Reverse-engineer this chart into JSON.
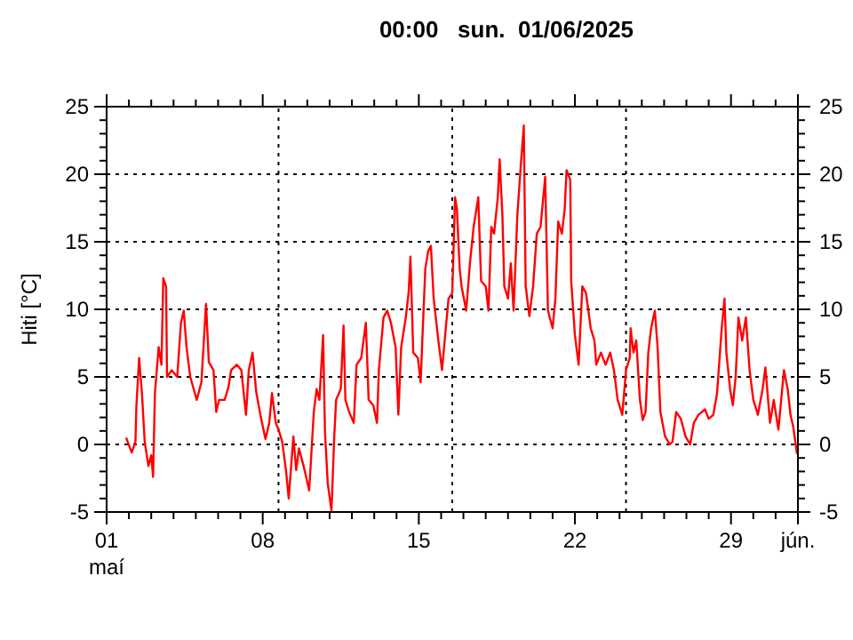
{
  "chart_data": {
    "type": "line",
    "title": "00:00   sun.  01/06/2025",
    "ylabel": "Hiti [°C]",
    "xlim": [
      "2025-05-01",
      "2025-06-01"
    ],
    "xticks": [
      {
        "value": "2025-05-01",
        "label": "01\nmaí"
      },
      {
        "value": "2025-05-02",
        "label": null
      },
      {
        "value": "2025-05-03",
        "label": null
      },
      {
        "value": "2025-05-04",
        "label": null
      },
      {
        "value": "2025-05-05",
        "label": null
      },
      {
        "value": "2025-05-06",
        "label": null
      },
      {
        "value": "2025-05-07",
        "label": null
      },
      {
        "value": "2025-05-08",
        "label": "08"
      },
      {
        "value": "2025-05-09",
        "label": null
      },
      {
        "value": "2025-05-10",
        "label": null
      },
      {
        "value": "2025-05-11",
        "label": null
      },
      {
        "value": "2025-05-12",
        "label": null
      },
      {
        "value": "2025-05-13",
        "label": null
      },
      {
        "value": "2025-05-14",
        "label": null
      },
      {
        "value": "2025-05-15",
        "label": "15"
      },
      {
        "value": "2025-05-16",
        "label": null
      },
      {
        "value": "2025-05-17",
        "label": null
      },
      {
        "value": "2025-05-18",
        "label": null
      },
      {
        "value": "2025-05-19",
        "label": null
      },
      {
        "value": "2025-05-20",
        "label": null
      },
      {
        "value": "2025-05-21",
        "label": null
      },
      {
        "value": "2025-05-22",
        "label": "22"
      },
      {
        "value": "2025-05-23",
        "label": null
      },
      {
        "value": "2025-05-24",
        "label": null
      },
      {
        "value": "2025-05-25",
        "label": null
      },
      {
        "value": "2025-05-26",
        "label": null
      },
      {
        "value": "2025-05-27",
        "label": null
      },
      {
        "value": "2025-05-28",
        "label": null
      },
      {
        "value": "2025-05-29",
        "label": "29"
      },
      {
        "value": "2025-05-30",
        "label": null
      },
      {
        "value": "2025-05-31",
        "label": null
      },
      {
        "value": "2025-06-01",
        "label": "jún."
      }
    ],
    "ylim": [
      -5,
      25
    ],
    "yticks": [
      -5,
      {
        "value": -4,
        "label": null
      },
      {
        "value": -3,
        "label": null
      },
      {
        "value": -2,
        "label": null
      },
      {
        "value": -1,
        "label": null
      },
      0,
      {
        "value": 1,
        "label": null
      },
      {
        "value": 2,
        "label": null
      },
      {
        "value": 3,
        "label": null
      },
      {
        "value": 4,
        "label": null
      },
      5,
      {
        "value": 6,
        "label": null
      },
      {
        "value": 7,
        "label": null
      },
      {
        "value": 8,
        "label": null
      },
      {
        "value": 9,
        "label": null
      },
      10,
      {
        "value": 11,
        "label": null
      },
      {
        "value": 12,
        "label": null
      },
      {
        "value": 13,
        "label": null
      },
      {
        "value": 14,
        "label": null
      },
      15,
      {
        "value": 16,
        "label": null
      },
      {
        "value": 17,
        "label": null
      },
      {
        "value": 18,
        "label": null
      },
      {
        "value": 19,
        "label": null
      },
      20,
      {
        "value": 21,
        "label": null
      },
      {
        "value": 22,
        "label": null
      },
      {
        "value": 23,
        "label": null
      },
      {
        "value": 24,
        "label": null
      },
      25
    ],
    "y2lim": [
      -5,
      25
    ],
    "y2ticks": [
      -5,
      {
        "value": -4,
        "label": null
      },
      {
        "value": -3,
        "label": null
      },
      {
        "value": -2,
        "label": null
      },
      {
        "value": -1,
        "label": null
      },
      0,
      {
        "value": 1,
        "label": null
      },
      {
        "value": 2,
        "label": null
      },
      {
        "value": 3,
        "label": null
      },
      {
        "value": 4,
        "label": null
      },
      5,
      {
        "value": 6,
        "label": null
      },
      {
        "value": 7,
        "label": null
      },
      {
        "value": 8,
        "label": null
      },
      {
        "value": 9,
        "label": null
      },
      10,
      {
        "value": 11,
        "label": null
      },
      {
        "value": 12,
        "label": null
      },
      {
        "value": 13,
        "label": null
      },
      {
        "value": 14,
        "label": null
      },
      15,
      {
        "value": 16,
        "label": null
      },
      {
        "value": 17,
        "label": null
      },
      {
        "value": 18,
        "label": null
      },
      {
        "value": 19,
        "label": null
      },
      20,
      {
        "value": 21,
        "label": null
      },
      {
        "value": 22,
        "label": null
      },
      {
        "value": 23,
        "label": null
      },
      {
        "value": 24,
        "label": null
      },
      25
    ],
    "grid": "y",
    "marker": "none",
    "line_style": "solid",
    "ref_lines": [
      {
        "axis": "x",
        "value": "2025-05-08T17:00",
        "label": null,
        "color": "#000000",
        "line_style": "dotted"
      },
      {
        "axis": "x",
        "value": "2025-05-16T12:00",
        "label": null,
        "color": "#000000",
        "line_style": "dotted"
      },
      {
        "axis": "x",
        "value": "2025-05-24T07:00",
        "label": null,
        "color": "#000000",
        "line_style": "dotted"
      }
    ],
    "series": [
      {
        "color": "#ff0000",
        "x": [
          "2025-05-01T21:00",
          "2025-05-02T03:00",
          "2025-05-02T07:00",
          "2025-05-02T08:00",
          "2025-05-02T11:00",
          "2025-05-02T14:00",
          "2025-05-02T17:00",
          "2025-05-02T21:00",
          "2025-05-03T00:00",
          "2025-05-03T02:00",
          "2025-05-03T04:00",
          "2025-05-03T08:00",
          "2025-05-03T11:00",
          "2025-05-03T13:00",
          "2025-05-03T16:00",
          "2025-05-03T17:00",
          "2025-05-03T22:00",
          "2025-05-04T04:00",
          "2025-05-04T08:00",
          "2025-05-04T11:00",
          "2025-05-04T14:00",
          "2025-05-04T18:00",
          "2025-05-05T01:00",
          "2025-05-05T06:00",
          "2025-05-05T11:00",
          "2025-05-05T14:00",
          "2025-05-05T19:00",
          "2025-05-05T22:00",
          "2025-05-06T01:00",
          "2025-05-06T07:00",
          "2025-05-06T11:00",
          "2025-05-06T14:00",
          "2025-05-06T20:00",
          "2025-05-07T01:00",
          "2025-05-07T06:00",
          "2025-05-07T09:00",
          "2025-05-07T13:00",
          "2025-05-07T17:00",
          "2025-05-07T22:00",
          "2025-05-08T03:00",
          "2025-05-08T07:00",
          "2025-05-08T10:00",
          "2025-05-08T14:00",
          "2025-05-08T17:00",
          "2025-05-08T21:00",
          "2025-05-09T01:00",
          "2025-05-09T04:00",
          "2025-05-09T09:00",
          "2025-05-09T12:00",
          "2025-05-09T15:00",
          "2025-05-09T20:00",
          "2025-05-10T02:00",
          "2025-05-10T07:00",
          "2025-05-10T10:00",
          "2025-05-10T13:00",
          "2025-05-10T17:00",
          "2025-05-10T19:00",
          "2025-05-10T22:00",
          "2025-05-11T02:00",
          "2025-05-11T05:00",
          "2025-05-11T07:00",
          "2025-05-11T12:00",
          "2025-05-11T15:00",
          "2025-05-11T17:00",
          "2025-05-11T21:00",
          "2025-05-12T02:00",
          "2025-05-12T05:00",
          "2025-05-12T10:00",
          "2025-05-12T15:00",
          "2025-05-12T18:00",
          "2025-05-12T23:00",
          "2025-05-13T03:00",
          "2025-05-13T05:00",
          "2025-05-13T10:00",
          "2025-05-13T14:00",
          "2025-05-13T18:00",
          "2025-05-13T23:00",
          "2025-05-14T02:00",
          "2025-05-14T05:00",
          "2025-05-14T10:00",
          "2025-05-14T13:00",
          "2025-05-14T15:00",
          "2025-05-14T18:00",
          "2025-05-14T23:00",
          "2025-05-15T02:00",
          "2025-05-15T04:00",
          "2025-05-15T07:00",
          "2025-05-15T10:00",
          "2025-05-15T13:00",
          "2025-05-15T16:00",
          "2025-05-15T21:00",
          "2025-05-16T01:00",
          "2025-05-16T05:00",
          "2025-05-16T08:00",
          "2025-05-16T12:00",
          "2025-05-16T15:00",
          "2025-05-16T17:00",
          "2025-05-16T20:00",
          "2025-05-16T22:00",
          "2025-05-17T03:00",
          "2025-05-17T07:00",
          "2025-05-17T11:00",
          "2025-05-17T16:00",
          "2025-05-17T19:00",
          "2025-05-18T00:00",
          "2025-05-18T03:00",
          "2025-05-18T06:00",
          "2025-05-18T09:00",
          "2025-05-18T13:00",
          "2025-05-18T15:00",
          "2025-05-18T18:00",
          "2025-05-18T20:00",
          "2025-05-19T00:00",
          "2025-05-19T03:00",
          "2025-05-19T06:00",
          "2025-05-19T10:00",
          "2025-05-19T14:00",
          "2025-05-19T17:00",
          "2025-05-19T19:00",
          "2025-05-19T23:00",
          "2025-05-20T03:00",
          "2025-05-20T07:00",
          "2025-05-20T11:00",
          "2025-05-20T16:00",
          "2025-05-20T19:00",
          "2025-05-21T00:00",
          "2025-05-21T03:00",
          "2025-05-21T06:00",
          "2025-05-21T10:00",
          "2025-05-21T13:00",
          "2025-05-21T15:00",
          "2025-05-21T19:00",
          "2025-05-21T20:00",
          "2025-05-22T00:00",
          "2025-05-22T04:00",
          "2025-05-22T08:00",
          "2025-05-22T12:00",
          "2025-05-22T17:00",
          "2025-05-22T21:00",
          "2025-05-22T23:00",
          "2025-05-23T04:00",
          "2025-05-23T09:00",
          "2025-05-23T14:00",
          "2025-05-23T18:00",
          "2025-05-23T22:00",
          "2025-05-24T03:00",
          "2025-05-24T07:00",
          "2025-05-24T11:00",
          "2025-05-24T12:00",
          "2025-05-24T15:00",
          "2025-05-24T18:00",
          "2025-05-24T22:00",
          "2025-05-25T01:00",
          "2025-05-25T04:00",
          "2025-05-25T07:00",
          "2025-05-25T10:00",
          "2025-05-25T14:00",
          "2025-05-25T17:00",
          "2025-05-25T20:00",
          "2025-05-26T01:00",
          "2025-05-26T06:00",
          "2025-05-26T09:00",
          "2025-05-26T13:00",
          "2025-05-26T18:00",
          "2025-05-26T23:00",
          "2025-05-27T04:00",
          "2025-05-27T08:00",
          "2025-05-27T13:00",
          "2025-05-27T20:00",
          "2025-05-28T00:00",
          "2025-05-28T05:00",
          "2025-05-28T09:00",
          "2025-05-28T14:00",
          "2025-05-28T17:00",
          "2025-05-28T19:00",
          "2025-05-28T23:00",
          "2025-05-29T02:00",
          "2025-05-29T05:00",
          "2025-05-29T08:00",
          "2025-05-29T12:00",
          "2025-05-29T16:00",
          "2025-05-29T20:00",
          "2025-05-30T00:00",
          "2025-05-30T05:00",
          "2025-05-30T10:00",
          "2025-05-30T13:00",
          "2025-05-30T18:00",
          "2025-05-30T22:00",
          "2025-05-31T03:00",
          "2025-05-31T09:00",
          "2025-05-31T13:00",
          "2025-05-31T16:00",
          "2025-05-31T19:00",
          "2025-05-31T23:00"
        ],
        "values": [
          0.5,
          -0.6,
          0.2,
          2.8,
          6.4,
          3.8,
          0.2,
          -1.6,
          -0.8,
          -2.4,
          3.8,
          7.2,
          5.9,
          12.3,
          11.7,
          5.0,
          5.5,
          5.0,
          9.0,
          9.9,
          7.2,
          5.0,
          3.3,
          4.6,
          10.4,
          6.1,
          5.5,
          2.4,
          3.3,
          3.3,
          4.2,
          5.5,
          5.9,
          5.5,
          2.2,
          5.5,
          6.8,
          3.9,
          2.0,
          0.4,
          1.6,
          3.8,
          1.6,
          1.1,
          0.2,
          -1.9,
          -4.0,
          0.6,
          -1.9,
          -0.3,
          -1.6,
          -3.4,
          2.4,
          4.1,
          3.3,
          8.1,
          0.9,
          -2.9,
          -4.9,
          0.6,
          3.3,
          4.1,
          8.8,
          3.3,
          2.4,
          1.6,
          5.9,
          6.4,
          9.0,
          3.3,
          2.9,
          1.6,
          5.5,
          9.4,
          9.9,
          9.0,
          7.2,
          2.2,
          7.2,
          9.4,
          11.2,
          13.9,
          6.8,
          6.4,
          4.6,
          8.1,
          13.0,
          14.3,
          14.7,
          10.8,
          7.7,
          5.5,
          8.6,
          10.8,
          11.2,
          18.3,
          17.4,
          13.0,
          11.7,
          9.9,
          13.4,
          16.1,
          18.3,
          12.1,
          11.7,
          9.9,
          16.1,
          15.6,
          18.3,
          21.1,
          16.9,
          11.7,
          10.8,
          13.4,
          9.9,
          16.9,
          20.9,
          23.6,
          11.7,
          9.5,
          11.7,
          15.6,
          16.1,
          19.8,
          9.9,
          8.6,
          10.8,
          16.5,
          15.6,
          17.4,
          20.3,
          19.6,
          12.1,
          8.1,
          5.9,
          11.7,
          11.2,
          8.6,
          7.7,
          5.9,
          6.8,
          5.9,
          6.8,
          5.5,
          3.3,
          2.2,
          5.5,
          6.4,
          8.6,
          6.8,
          7.7,
          3.3,
          1.8,
          2.4,
          6.8,
          8.6,
          9.9,
          7.2,
          2.4,
          0.6,
          0.0,
          0.2,
          2.4,
          1.9,
          0.6,
          0.0,
          1.6,
          2.2,
          2.6,
          1.9,
          2.2,
          3.8,
          8.6,
          10.8,
          6.8,
          4.1,
          2.9,
          5.0,
          9.4,
          7.7,
          9.4,
          5.5,
          3.3,
          2.2,
          4.1,
          5.7,
          1.6,
          3.3,
          1.1,
          5.5,
          4.1,
          2.2,
          1.3,
          -0.7
        ]
      }
    ]
  }
}
